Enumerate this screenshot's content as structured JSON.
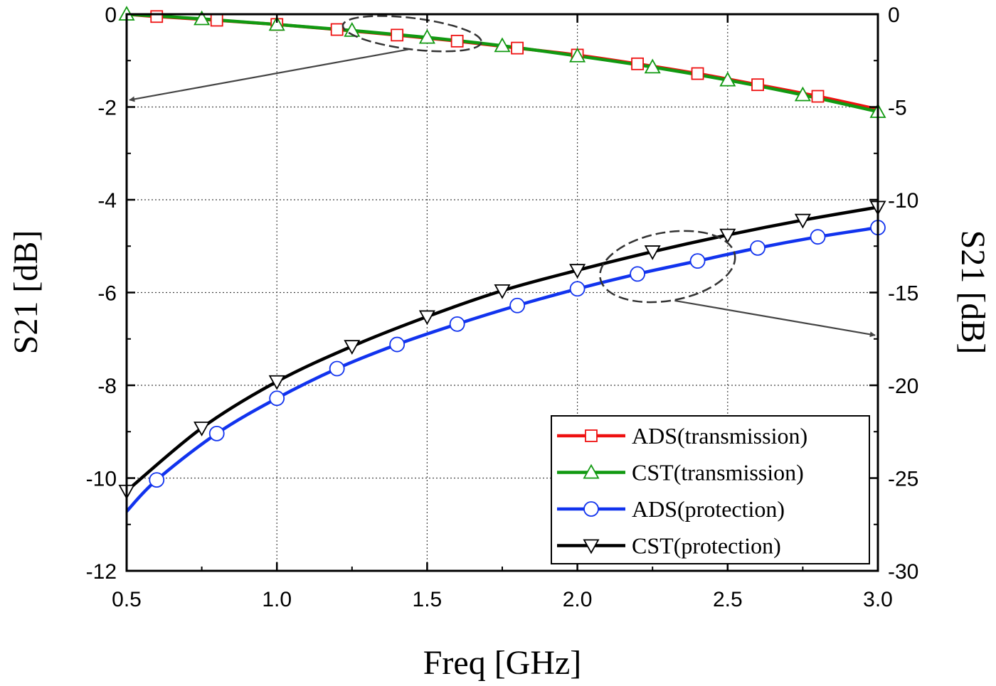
{
  "chart_data": {
    "type": "line",
    "xlabel": "Freq [GHz]",
    "ylabel": "S21 [dB]",
    "y2label": "S21 [dB]",
    "xlim": [
      0.5,
      3.0
    ],
    "ylim": [
      -12,
      0
    ],
    "y2lim": [
      -30,
      0
    ],
    "xticks": [
      0.5,
      1.0,
      1.5,
      2.0,
      2.5,
      3.0
    ],
    "xtick_labels": [
      "0.5",
      "1.0",
      "1.5",
      "2.0",
      "2.5",
      "3.0"
    ],
    "yticks": [
      0,
      -2,
      -4,
      -6,
      -8,
      -10,
      -12
    ],
    "ytick_labels": [
      "0",
      "-2",
      "-4",
      "-6",
      "-8",
      "-10",
      "-12"
    ],
    "y2ticks": [
      0,
      -5,
      -10,
      -15,
      -20,
      -25,
      -30
    ],
    "y2tick_labels": [
      "0",
      "-5",
      "-10",
      "-15",
      "-20",
      "-25",
      "-30"
    ],
    "grid": true,
    "legend_position": "bottom-right",
    "series": [
      {
        "name": "ADS(transmission)",
        "axis": "left",
        "color": "#ee1111",
        "marker": "square",
        "x": [
          0.5,
          0.6,
          0.8,
          1.0,
          1.2,
          1.4,
          1.6,
          1.8,
          2.0,
          2.2,
          2.4,
          2.6,
          2.8,
          3.0
        ],
        "y": [
          0.0,
          -0.05,
          -0.13,
          -0.22,
          -0.33,
          -0.45,
          -0.58,
          -0.73,
          -0.88,
          -1.07,
          -1.28,
          -1.52,
          -1.77,
          -2.05
        ],
        "marker_x": [
          0.6,
          0.8,
          1.0,
          1.2,
          1.4,
          1.6,
          1.8,
          2.0,
          2.2,
          2.4,
          2.6,
          2.8
        ],
        "marker_y": [
          -0.05,
          -0.13,
          -0.22,
          -0.33,
          -0.45,
          -0.58,
          -0.73,
          -0.88,
          -1.07,
          -1.28,
          -1.52,
          -1.77
        ]
      },
      {
        "name": "CST(transmission)",
        "axis": "left",
        "color": "#119911",
        "marker": "triangle-up",
        "x": [
          0.5,
          0.75,
          1.0,
          1.25,
          1.5,
          1.75,
          2.0,
          2.25,
          2.5,
          2.75,
          3.0
        ],
        "y": [
          0.0,
          -0.1,
          -0.22,
          -0.35,
          -0.5,
          -0.68,
          -0.9,
          -1.14,
          -1.42,
          -1.74,
          -2.1
        ],
        "marker_x": [
          0.5,
          0.75,
          1.0,
          1.25,
          1.5,
          1.75,
          2.0,
          2.25,
          2.5,
          2.75,
          3.0
        ],
        "marker_y": [
          0.0,
          -0.1,
          -0.22,
          -0.35,
          -0.5,
          -0.68,
          -0.9,
          -1.14,
          -1.42,
          -1.74,
          -2.1
        ]
      },
      {
        "name": "ADS(protection)",
        "axis": "right",
        "color": "#1133ee",
        "marker": "circle",
        "x": [
          0.5,
          0.6,
          0.8,
          1.0,
          1.2,
          1.4,
          1.6,
          1.8,
          2.0,
          2.2,
          2.4,
          2.6,
          2.8,
          3.0
        ],
        "y": [
          -26.8,
          -25.1,
          -22.6,
          -20.7,
          -19.1,
          -17.8,
          -16.7,
          -15.7,
          -14.8,
          -14.0,
          -13.3,
          -12.6,
          -12.0,
          -11.5
        ],
        "marker_x": [
          0.6,
          0.8,
          1.0,
          1.2,
          1.4,
          1.6,
          1.8,
          2.0,
          2.2,
          2.4,
          2.6,
          2.8,
          3.0
        ],
        "marker_y": [
          -25.1,
          -22.6,
          -20.7,
          -19.1,
          -17.8,
          -16.7,
          -15.7,
          -14.8,
          -14.0,
          -13.3,
          -12.6,
          -12.0,
          -11.5
        ]
      },
      {
        "name": "CST(protection)",
        "axis": "right",
        "color": "#000000",
        "marker": "triangle-down",
        "x": [
          0.5,
          0.75,
          1.0,
          1.25,
          1.5,
          1.75,
          2.0,
          2.25,
          2.5,
          2.75,
          3.0
        ],
        "y": [
          -25.7,
          -22.3,
          -19.8,
          -17.9,
          -16.3,
          -14.9,
          -13.8,
          -12.8,
          -11.9,
          -11.1,
          -10.4
        ],
        "marker_x": [
          0.5,
          0.75,
          1.0,
          1.25,
          1.5,
          1.75,
          2.0,
          2.25,
          2.5,
          2.75,
          3.0
        ],
        "marker_y": [
          -25.7,
          -22.3,
          -19.8,
          -17.9,
          -16.3,
          -14.9,
          -13.8,
          -12.8,
          -11.9,
          -11.1,
          -10.4
        ]
      }
    ],
    "annotations": [
      {
        "type": "ellipse-arrow",
        "points_to": "left-axis",
        "target_series": "transmission"
      },
      {
        "type": "ellipse-arrow",
        "points_to": "right-axis",
        "target_series": "protection"
      }
    ]
  }
}
